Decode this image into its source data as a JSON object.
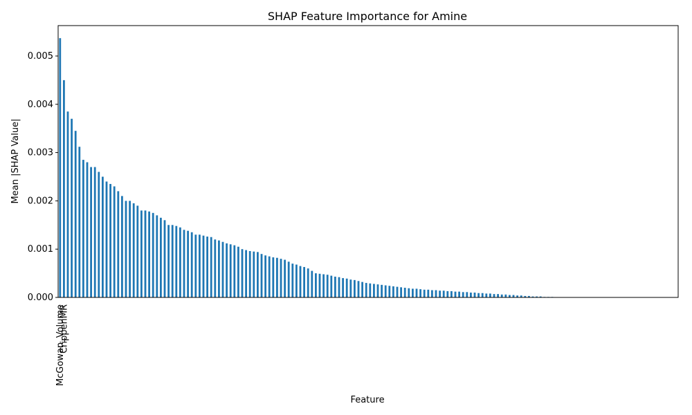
{
  "chart_data": {
    "type": "bar",
    "title": "SHAP Feature Importance for Amine",
    "x_label": "Feature",
    "y_label": "Mean |SHAP Value|",
    "color": "#1f77b4",
    "categories": [
      "McGowan_Volume",
      "CrippenMR",
      null,
      null,
      null,
      null,
      null,
      null,
      null,
      null,
      null,
      null,
      null,
      null,
      null,
      null,
      null,
      null,
      null,
      null,
      null,
      null,
      null,
      null,
      null,
      null,
      null,
      null,
      null,
      null,
      null,
      null,
      null,
      null,
      null,
      null,
      null,
      null,
      null,
      null,
      null,
      null,
      null,
      null,
      null,
      null,
      null,
      null,
      null,
      null,
      null,
      null,
      null,
      null,
      null,
      null,
      null,
      null,
      null,
      null,
      null,
      null,
      null,
      null,
      null,
      null,
      null,
      null,
      null,
      null,
      null,
      null,
      null,
      null,
      null,
      null,
      null,
      null,
      null,
      null,
      null,
      null,
      null,
      null,
      null,
      null,
      null,
      null,
      null,
      null,
      null,
      null,
      null,
      null,
      null,
      null,
      null,
      null,
      null,
      null,
      null,
      null,
      null,
      null,
      null,
      null,
      null,
      null,
      null,
      null,
      null,
      null,
      null,
      null,
      null,
      null,
      null,
      null,
      null,
      null,
      null,
      null,
      null,
      null,
      null,
      null,
      null,
      null,
      null,
      null,
      null,
      null,
      null,
      null,
      null,
      null,
      null,
      null,
      null,
      null,
      null,
      null,
      null,
      null,
      null,
      null,
      null,
      null,
      null,
      null,
      null,
      null,
      null,
      null,
      null,
      null,
      null,
      null,
      null,
      null
    ],
    "values": [
      0.00537,
      0.0045,
      0.00385,
      0.0037,
      0.00345,
      0.00312,
      0.00285,
      0.0028,
      0.0027,
      0.0027,
      0.0026,
      0.0025,
      0.0024,
      0.00235,
      0.0023,
      0.0022,
      0.0021,
      0.002,
      0.002,
      0.00195,
      0.0019,
      0.0018,
      0.0018,
      0.00178,
      0.00175,
      0.0017,
      0.00165,
      0.0016,
      0.0015,
      0.0015,
      0.00148,
      0.00145,
      0.0014,
      0.00138,
      0.00135,
      0.0013,
      0.0013,
      0.00128,
      0.00126,
      0.00125,
      0.0012,
      0.00118,
      0.00115,
      0.00112,
      0.0011,
      0.00108,
      0.00105,
      0.001,
      0.00098,
      0.00096,
      0.00095,
      0.00094,
      0.0009,
      0.00087,
      0.00085,
      0.00083,
      0.00082,
      0.0008,
      0.00078,
      0.00074,
      0.0007,
      0.00068,
      0.00065,
      0.00063,
      0.0006,
      0.00055,
      0.0005,
      0.00049,
      0.00048,
      0.00047,
      0.00045,
      0.00043,
      0.00042,
      0.0004,
      0.00039,
      0.00037,
      0.00036,
      0.00034,
      0.00032,
      0.0003,
      0.00029,
      0.00028,
      0.00027,
      0.00026,
      0.00025,
      0.00024,
      0.00023,
      0.00022,
      0.00021,
      0.0002,
      0.00019,
      0.00018,
      0.00018,
      0.00017,
      0.00016,
      0.00016,
      0.00015,
      0.00015,
      0.00014,
      0.00014,
      0.00013,
      0.00013,
      0.00012,
      0.00012,
      0.00011,
      0.00011,
      0.0001,
      0.0001,
      9e-05,
      9e-05,
      8e-05,
      8e-05,
      7e-05,
      7e-05,
      6e-05,
      6e-05,
      5e-05,
      5e-05,
      4e-05,
      4e-05,
      3e-05,
      3e-05,
      2e-05,
      2e-05,
      2e-05,
      1e-05,
      1e-05,
      1e-05,
      0,
      0,
      0,
      0,
      0,
      0,
      0,
      0,
      0,
      0,
      0,
      0,
      0,
      0,
      0,
      0,
      0,
      0,
      0,
      0,
      0,
      0,
      0,
      0,
      0,
      0,
      0,
      0,
      0,
      0,
      0,
      0
    ],
    "ylim": [
      0,
      0.00563
    ],
    "yticks": [
      {
        "value": 0,
        "label": "0.000"
      },
      0.001,
      0.002,
      0.003,
      0.004,
      0.005
    ]
  }
}
